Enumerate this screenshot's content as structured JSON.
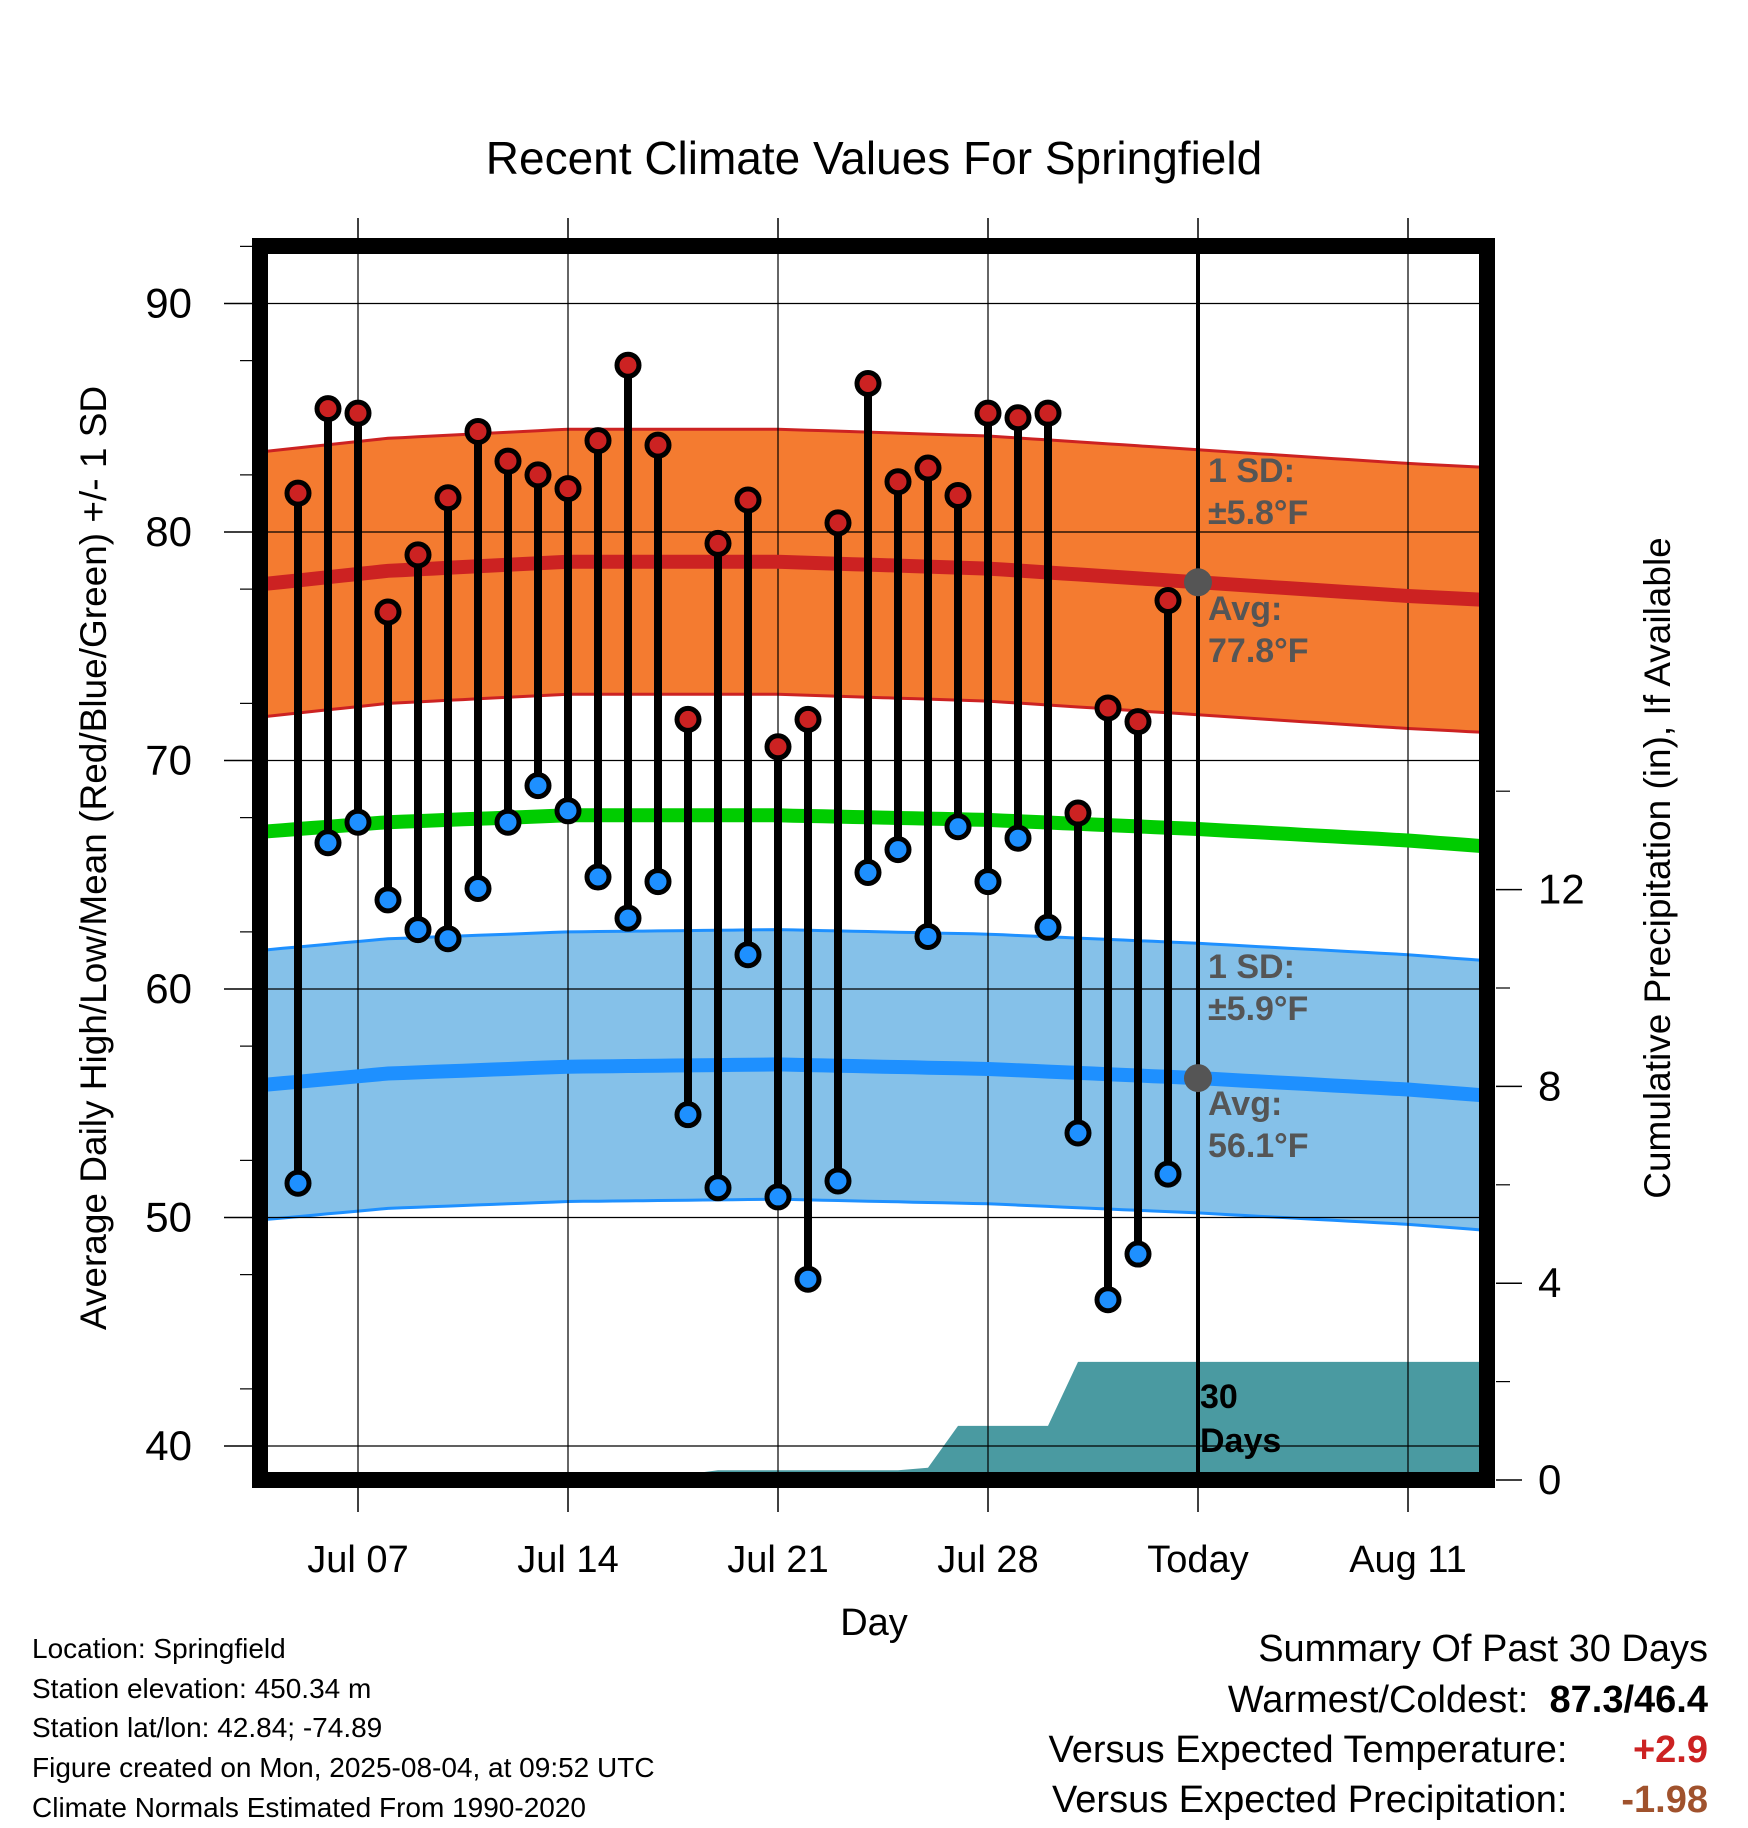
{
  "chart_data": {
    "type": "line",
    "title": "Recent Climate Values For Springfield",
    "xlabel": "Day",
    "ylabel": "Average Daily High/Low/Mean (Red/Blue/Green) +/- 1 SD",
    "y2label": "Cumulative Precipitation (in), If Available",
    "ylim": [
      38.9,
      94.5
    ],
    "y2lim": [
      0,
      30
    ],
    "y_ticks": [
      "40",
      "50",
      "60",
      "70",
      "80",
      "90"
    ],
    "y2_ticks": [
      "0",
      "4",
      "8",
      "12"
    ],
    "x_range": [
      "2025-07-03",
      "2025-08-14"
    ],
    "x_ticks": [
      {
        "date": "2025-07-07",
        "label": "Jul 07"
      },
      {
        "date": "2025-07-14",
        "label": "Jul 14"
      },
      {
        "date": "2025-07-21",
        "label": "Jul 21"
      },
      {
        "date": "2025-07-28",
        "label": "Jul 28"
      },
      {
        "date": "2025-08-04",
        "label": "Today"
      },
      {
        "date": "2025-08-11",
        "label": "Aug 11"
      }
    ],
    "grid": true,
    "today": "2025-08-04",
    "days": [
      "2025-07-05",
      "2025-07-06",
      "2025-07-07",
      "2025-07-08",
      "2025-07-09",
      "2025-07-10",
      "2025-07-11",
      "2025-07-12",
      "2025-07-13",
      "2025-07-14",
      "2025-07-15",
      "2025-07-16",
      "2025-07-17",
      "2025-07-18",
      "2025-07-19",
      "2025-07-20",
      "2025-07-21",
      "2025-07-22",
      "2025-07-23",
      "2025-07-24",
      "2025-07-25",
      "2025-07-26",
      "2025-07-27",
      "2025-07-28",
      "2025-07-29",
      "2025-07-30",
      "2025-07-31",
      "2025-08-01",
      "2025-08-02",
      "2025-08-03"
    ],
    "highs": [
      81.7,
      85.4,
      85.2,
      76.5,
      79.0,
      81.5,
      84.4,
      83.1,
      82.5,
      81.9,
      84.0,
      87.3,
      83.8,
      71.8,
      79.5,
      81.4,
      70.6,
      71.8,
      80.4,
      86.5,
      82.2,
      82.8,
      81.6,
      85.2,
      85.0,
      85.2,
      67.7,
      72.3,
      71.7,
      77.0
    ],
    "lows": [
      51.5,
      66.4,
      67.3,
      63.9,
      62.6,
      62.2,
      64.4,
      67.3,
      68.9,
      67.8,
      64.9,
      63.1,
      64.7,
      54.5,
      51.3,
      61.5,
      50.9,
      47.3,
      51.6,
      65.1,
      66.1,
      62.3,
      67.1,
      64.7,
      66.6,
      62.7,
      53.7,
      46.4,
      48.4,
      51.9
    ],
    "normal_x": [
      "2025-07-03",
      "2025-07-08",
      "2025-07-14",
      "2025-07-21",
      "2025-07-28",
      "2025-08-04",
      "2025-08-11",
      "2025-08-14"
    ],
    "normal_high": [
      77.6,
      78.3,
      78.7,
      78.7,
      78.4,
      77.8,
      77.2,
      77.0
    ],
    "normal_mean": [
      66.8,
      67.3,
      67.6,
      67.6,
      67.4,
      67.0,
      66.5,
      66.2
    ],
    "normal_low": [
      55.7,
      56.3,
      56.6,
      56.7,
      56.5,
      56.1,
      55.6,
      55.3
    ],
    "high_sd": 5.8,
    "low_sd": 5.9,
    "precip_x": [
      "2025-07-03",
      "2025-07-12",
      "2025-07-13",
      "2025-07-18",
      "2025-07-19",
      "2025-07-25",
      "2025-07-26",
      "2025-07-27",
      "2025-07-30",
      "2025-07-31",
      "2025-08-14"
    ],
    "precip": [
      0.0,
      0.0,
      0.12,
      0.12,
      0.2,
      0.2,
      0.25,
      1.1,
      1.1,
      2.4,
      2.4
    ],
    "colors": {
      "high_band": "#f47b30",
      "high_line": "#cc2222",
      "low_band": "#85c1e9",
      "low_line": "#1e90ff",
      "mean_line": "#00cc00",
      "precip": "#4a9aa1",
      "high_dot": "#cc2222",
      "low_dot": "#1e90ff",
      "avg_dot": "#555555"
    },
    "annotations": {
      "high_sd_label": "1 SD:",
      "high_sd_value": "±5.8°F",
      "high_avg_label": "Avg:",
      "high_avg_value": "77.8°F",
      "low_sd_label": "1 SD:",
      "low_sd_value": "±5.9°F",
      "low_avg_label": "Avg:",
      "low_avg_value": "56.1°F",
      "days_label_1": "30",
      "days_label_2": "Days"
    }
  },
  "meta": {
    "location": "Location: Springfield",
    "elevation": "Station elevation: 450.34 m",
    "latlon": "Station lat/lon: 42.84; -74.89",
    "created": "Figure created on Mon, 2025-08-04, at 09:52 UTC",
    "normals": "Climate Normals Estimated From 1990-2020"
  },
  "summary": {
    "title": "Summary Of Past 30 Days",
    "warmest_label": "Warmest/Coldest:",
    "warmest_value": "87.3",
    "coldest_value": "46.4",
    "temp_label": "Versus Expected Temperature:",
    "temp_value": "+2.9",
    "temp_color": "#cc2222",
    "precip_label": "Versus Expected Precipitation:",
    "precip_value": "-1.98",
    "precip_color": "#a0522d"
  }
}
